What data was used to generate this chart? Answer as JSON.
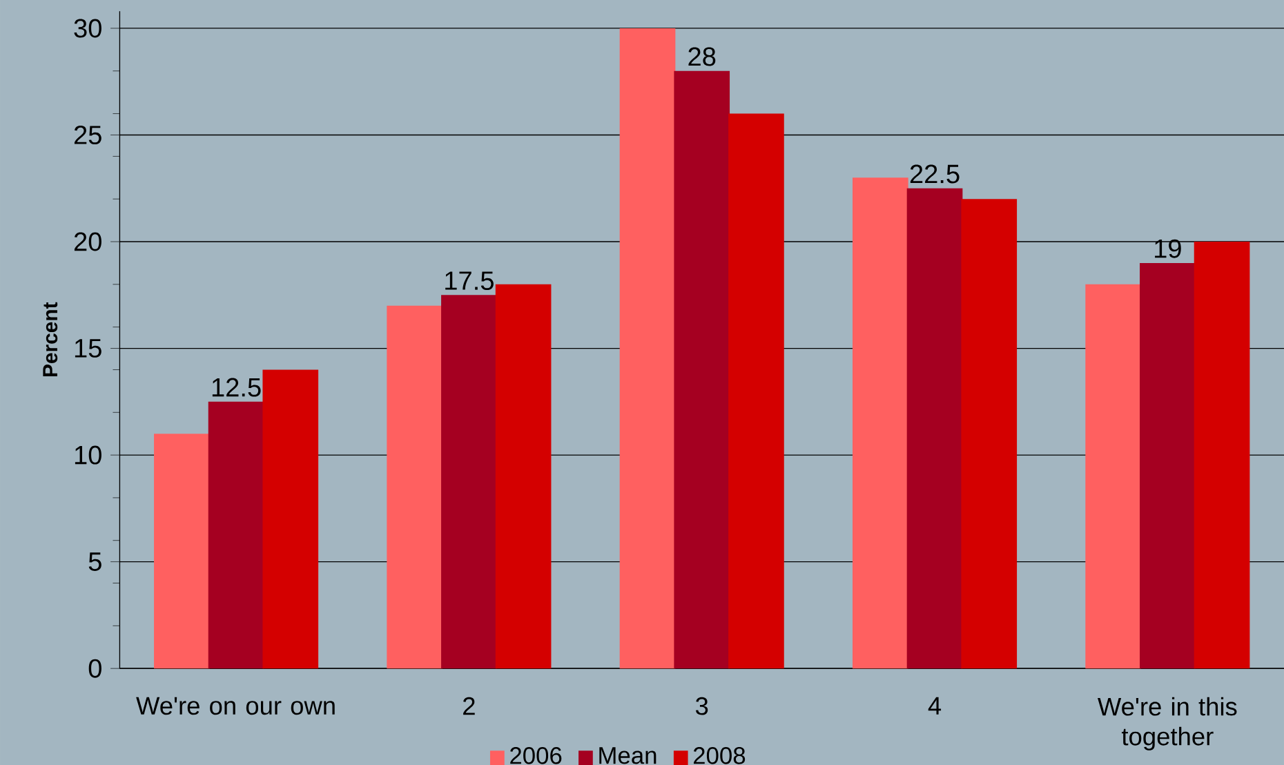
{
  "chart_data": {
    "type": "bar",
    "ylabel": "Percent",
    "categories": [
      "We're on our own",
      "2",
      "3",
      "4",
      "We're in this together"
    ],
    "series": [
      {
        "name": "2006",
        "color": "#ff6060",
        "values": [
          11,
          17,
          30,
          23,
          18
        ]
      },
      {
        "name": "Mean",
        "color": "#a50021",
        "values": [
          12.5,
          17.5,
          28,
          22.5,
          19
        ],
        "value_labels": [
          "12.5",
          "17.5",
          "28",
          "22.5",
          "19"
        ]
      },
      {
        "name": "2008",
        "color": "#d40000",
        "values": [
          14,
          18,
          26,
          22,
          20
        ]
      }
    ],
    "ylim": [
      0,
      30.8
    ],
    "yticks": [
      0,
      {
        "value": 2,
        "label": null
      },
      {
        "value": 4,
        "label": null
      },
      5,
      {
        "value": 6,
        "label": null
      },
      {
        "value": 8,
        "label": null
      },
      10,
      {
        "value": 12,
        "label": null
      },
      {
        "value": 14,
        "label": null
      },
      15,
      {
        "value": 16,
        "label": null
      },
      {
        "value": 18,
        "label": null
      },
      20,
      {
        "value": 22,
        "label": null
      },
      {
        "value": 24,
        "label": null
      },
      25,
      {
        "value": 26,
        "label": null
      },
      {
        "value": 28,
        "label": null
      },
      30
    ],
    "grid": "y",
    "legend": "bottom"
  }
}
